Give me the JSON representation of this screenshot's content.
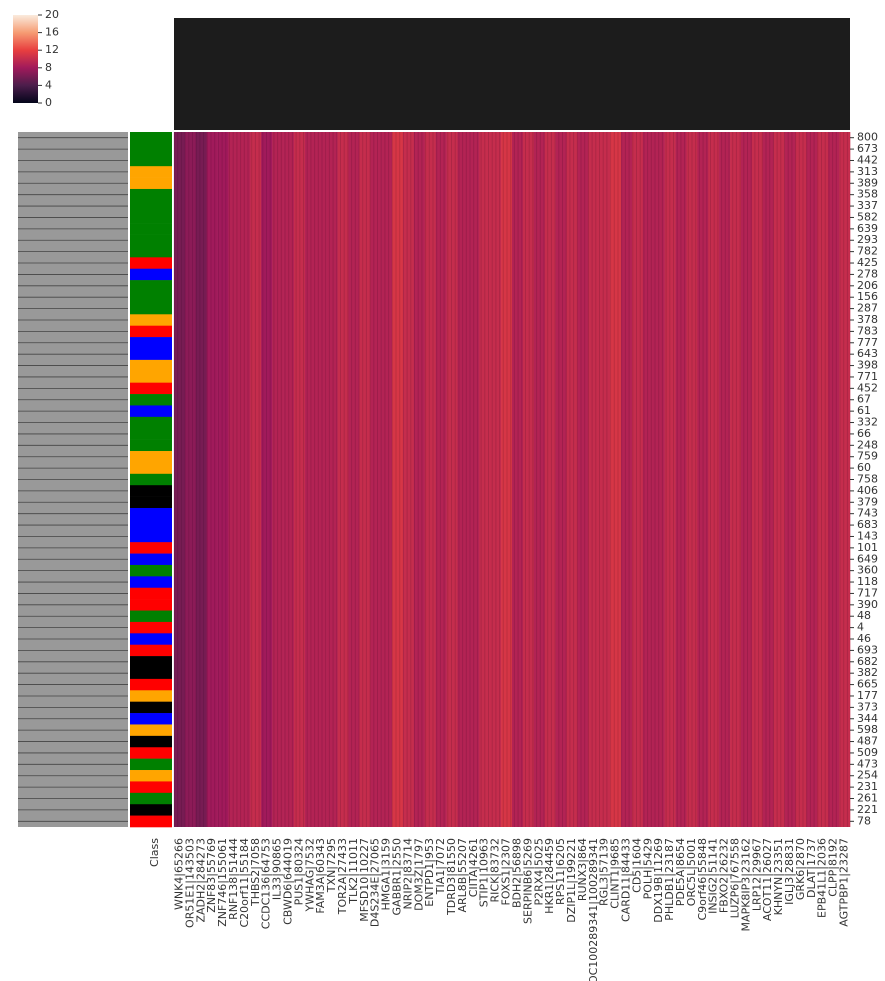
{
  "chart_data": {
    "type": "heatmap",
    "colorbar_ticks": [
      0,
      4,
      8,
      12,
      16,
      20
    ],
    "clim": [
      0,
      20
    ],
    "class_label": "Class",
    "rows": [
      "800",
      "673",
      "442",
      "313",
      "389",
      "358",
      "337",
      "582",
      "639",
      "293",
      "782",
      "425",
      "278",
      "206",
      "156",
      "287",
      "378",
      "783",
      "777",
      "643",
      "398",
      "771",
      "452",
      "67",
      "61",
      "332",
      "66",
      "248",
      "759",
      "60",
      "758",
      "406",
      "379",
      "743",
      "683",
      "143",
      "101",
      "649",
      "360",
      "118",
      "717",
      "390",
      "48",
      "4",
      "46",
      "693",
      "682",
      "382",
      "665",
      "177",
      "373",
      "344",
      "598",
      "487",
      "509",
      "473",
      "254",
      "231",
      "261",
      "221",
      "78"
    ],
    "row_colors": [
      "#008000",
      "#008000",
      "#008000",
      "#ffa500",
      "#ffa500",
      "#008000",
      "#008000",
      "#008000",
      "#008000",
      "#008000",
      "#008000",
      "#ff0000",
      "#0000ff",
      "#008000",
      "#008000",
      "#008000",
      "#ffa500",
      "#ff0000",
      "#0000ff",
      "#0000ff",
      "#ffa500",
      "#ffa500",
      "#ff0000",
      "#008000",
      "#0000ff",
      "#008000",
      "#008000",
      "#008000",
      "#ffa500",
      "#ffa500",
      "#008000",
      "#000000",
      "#000000",
      "#0000ff",
      "#0000ff",
      "#0000ff",
      "#ff0000",
      "#0000ff",
      "#008000",
      "#0000ff",
      "#ff0000",
      "#ff0000",
      "#008000",
      "#ff0000",
      "#0000ff",
      "#ff0000",
      "#000000",
      "#000000",
      "#ff0000",
      "#ffa500",
      "#000000",
      "#0000ff",
      "#ffa500",
      "#000000",
      "#ff0000",
      "#008000",
      "#ffa500",
      "#ff0000",
      "#008000",
      "#000000",
      "#ff0000"
    ],
    "categories": [
      "WNK4|65266",
      "OR51E1|143503",
      "ZADH2|284273",
      "ZNF83|55769",
      "ZNF746|155061",
      "RNF138|51444",
      "C20orf11|55184",
      "THBS2|7058",
      "CCDC136|64753",
      "IL33|90865",
      "CBWD6|644019",
      "PUS1|80324",
      "YWHAG|7532",
      "FAM3A|60343",
      "TXN|7295",
      "TOR2A|27433",
      "TLK2|11011",
      "MFSD10|10227",
      "D4S234E|27065",
      "HMGA1|3159",
      "GABBR1|2550",
      "NRIP2|83714",
      "DOM3Z|1797",
      "ENTPD1|953",
      "TIA1|7072",
      "TDRD3|81550",
      "ARL8B|55207",
      "CIITA|4261",
      "STIP1|10963",
      "RICK|83732",
      "FOXS1|2307",
      "BDH2|56898",
      "SERPINB6|5269",
      "P2RX4|5025",
      "HKR1|284459",
      "RPS11|6205",
      "DZIP1L|199221",
      "RUNX3|864",
      "LOC100289341|100289341",
      "RGL3|57139",
      "CLINT1|9685",
      "CARD11|84433",
      "CD5|1604",
      "POLH|5429",
      "DDX19B|11269",
      "PHLDB1|23187",
      "PDE5A|8654",
      "ORC5L|5001",
      "C9orf46|55848",
      "INSIG2|51141",
      "FBXO2|26232",
      "LUZP6|767558",
      "MAPK8IP3|23162",
      "LRP12|29967",
      "ACOT11|26027",
      "KHNYN|23351",
      "IGLJ3|28831",
      "GRK6|2870",
      "DLAT|1737",
      "EPB41L1|2036",
      "CLPP|8192",
      "AGTPBP1|23287"
    ],
    "values": [
      6,
      7,
      6,
      8,
      8,
      9,
      9,
      10,
      8,
      9,
      9,
      10,
      9,
      9,
      9,
      10,
      9,
      10,
      9,
      9,
      11,
      10,
      9,
      10,
      9,
      10,
      9,
      9,
      10,
      10,
      11,
      9,
      10,
      9,
      10,
      9,
      10,
      9,
      10,
      10,
      11,
      9,
      10,
      9,
      9,
      10,
      9,
      10,
      9,
      10,
      9,
      10,
      9,
      10,
      9,
      10,
      9,
      10,
      9,
      10,
      9,
      10
    ]
  }
}
